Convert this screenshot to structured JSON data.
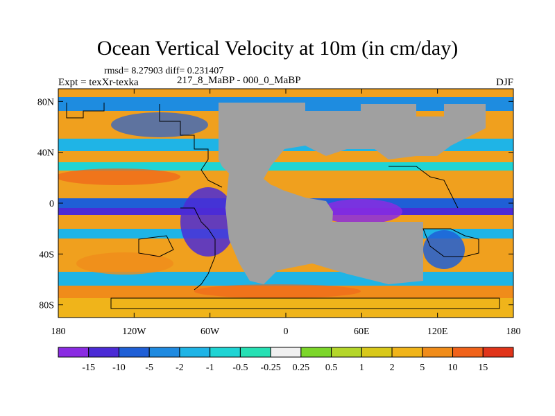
{
  "title": "Ocean Vertical Velocity at 10m (in cm/day)",
  "stats": "rmsd= 8.27903 diff= 0.231407",
  "expt": "Expt = texXr-texka",
  "comparison": "217_8_MaBP - 000_0_MaBP",
  "season": "DJF",
  "map": {
    "lon_range": [
      -180,
      180
    ],
    "lat_range": [
      -90,
      90
    ],
    "lat_ticks": [
      {
        "v": 80,
        "label": "80N"
      },
      {
        "v": 40,
        "label": "40N"
      },
      {
        "v": 0,
        "label": "0"
      },
      {
        "v": -40,
        "label": "40S"
      },
      {
        "v": -80,
        "label": "80S"
      }
    ],
    "lon_ticks": [
      {
        "v": -180,
        "label": "180"
      },
      {
        "v": -120,
        "label": "120W"
      },
      {
        "v": -60,
        "label": "60W"
      },
      {
        "v": 0,
        "label": "0"
      },
      {
        "v": 60,
        "label": "60E"
      },
      {
        "v": 120,
        "label": "120E"
      },
      {
        "v": 180,
        "label": "180"
      }
    ],
    "land_color": "#a0a0a0",
    "land_regions": [
      "Large land mass from about 40W to 30E, 30S to 80N",
      "Land mass around 20E to 100E, 40N to 80N"
    ]
  },
  "colorbar": {
    "labels": [
      "-15",
      "-10",
      "-5",
      "-2",
      "-1",
      "-0.5",
      "-0.25",
      "0.25",
      "0.5",
      "1",
      "2",
      "5",
      "10",
      "15"
    ],
    "colors": [
      "#8a2be2",
      "#4b2bd6",
      "#1f5fd6",
      "#1f8ae0",
      "#1fb4e6",
      "#1fd4d4",
      "#26e0b4",
      "#f0f0f0",
      "#7cd62a",
      "#b4d62a",
      "#d8c81a",
      "#f0b41a",
      "#f08c1a",
      "#f0621a",
      "#e0341a"
    ]
  }
}
